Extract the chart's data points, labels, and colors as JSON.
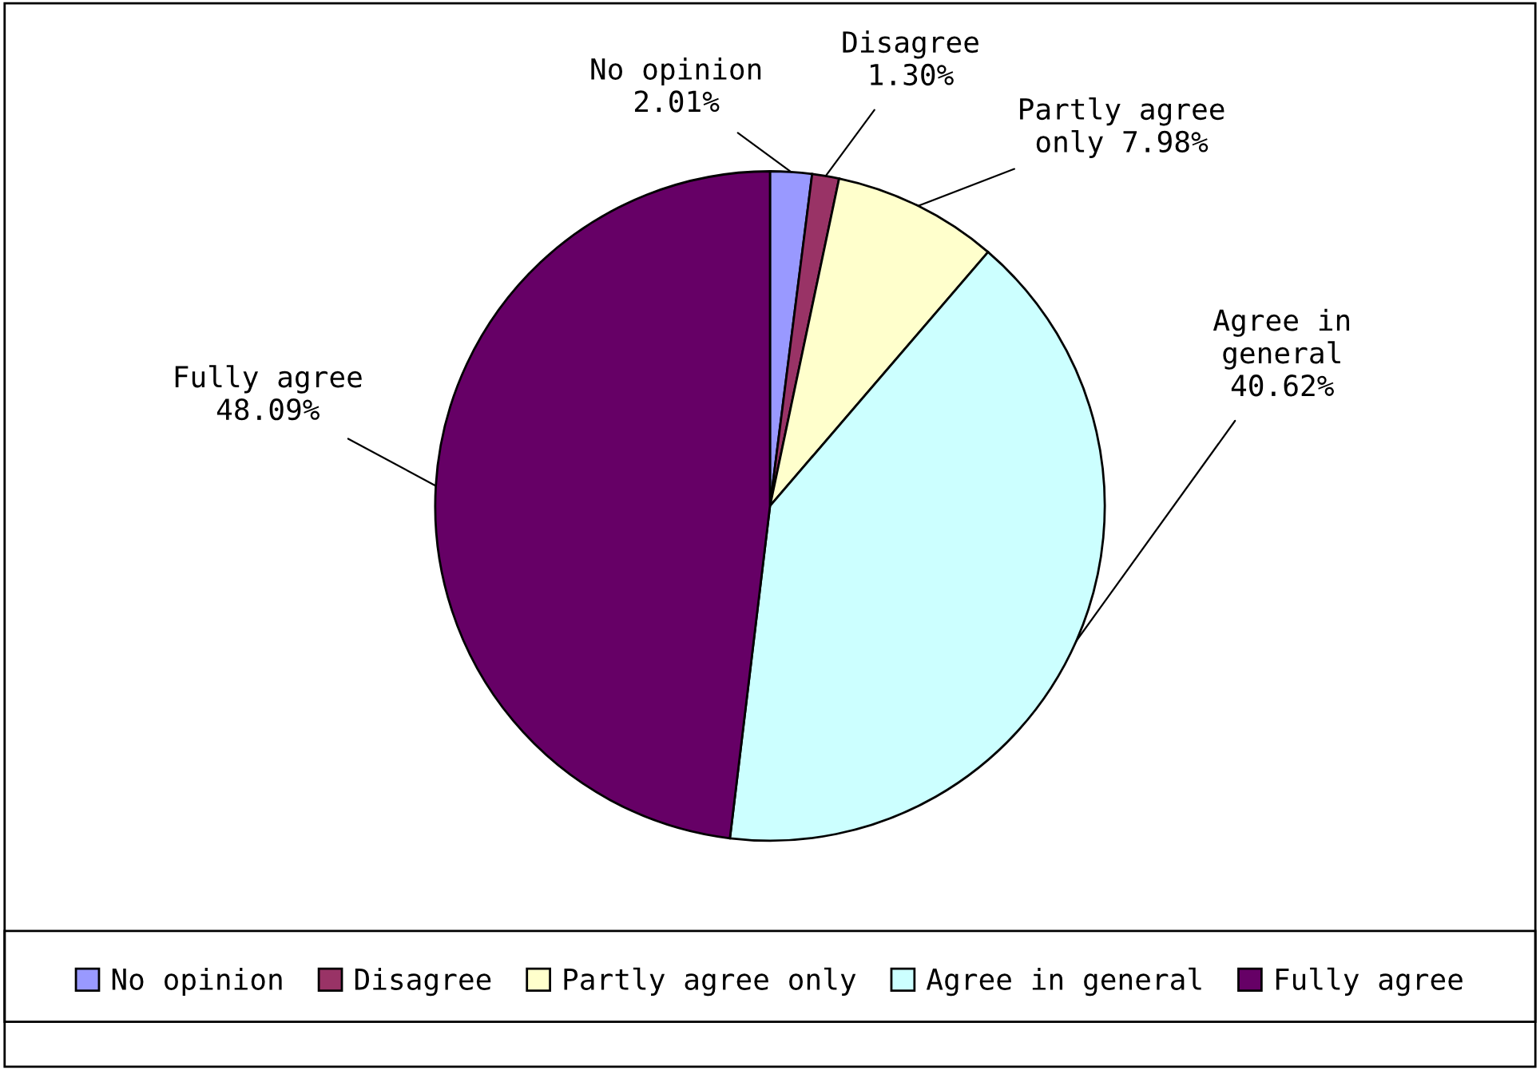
{
  "chart_data": {
    "type": "pie",
    "categories": [
      "No opinion",
      "Disagree",
      "Partly agree only",
      "Agree in general",
      "Fully agree"
    ],
    "values": [
      2.01,
      1.3,
      7.98,
      40.62,
      48.09
    ],
    "colors": [
      "#9999ff",
      "#993366",
      "#ffffcc",
      "#ccffff",
      "#660066"
    ],
    "value_labels": [
      "No opinion\n2.01%",
      "Disagree\n1.30%",
      "Partly agree\nonly 7.98%",
      "Agree in\ngeneral\n40.62%",
      "Fully agree\n48.09%"
    ],
    "legend": "bottom"
  }
}
